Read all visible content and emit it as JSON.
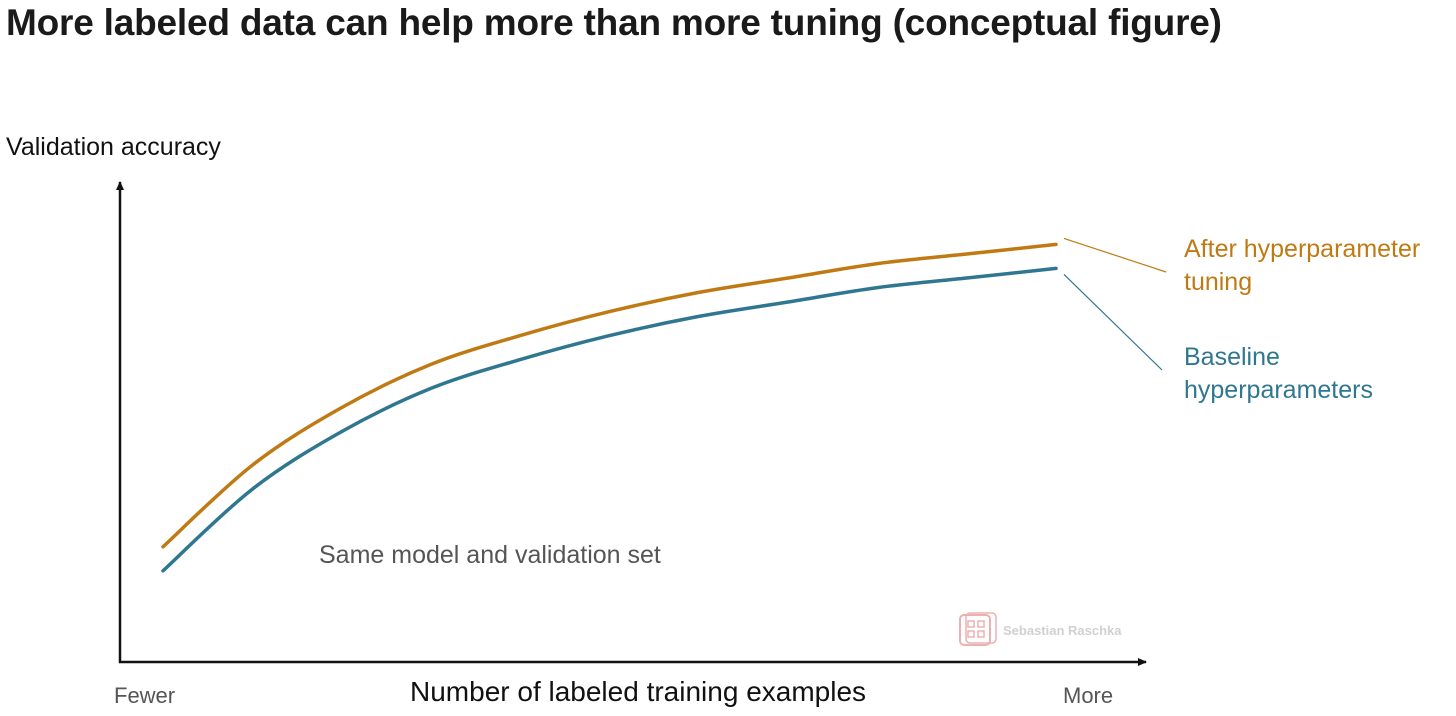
{
  "chart_data": {
    "type": "line",
    "title": "More labeled data can help more than more tuning (conceptual figure)",
    "xlabel": "Number of labeled training examples",
    "ylabel": "Validation accuracy",
    "xtick_labels": [
      "Fewer",
      "More"
    ],
    "annotation": "Same model and validation set",
    "xlim": [
      0,
      1
    ],
    "ylim": [
      0,
      1
    ],
    "grid": false,
    "legend": "direct labels at right end of lines",
    "series": [
      {
        "name": "After hyperparameter tuning",
        "label_lines": [
          "After hyperparameter",
          "tuning"
        ],
        "color": "#c07a14",
        "x": [
          0,
          0.1,
          0.2,
          0.3,
          0.4,
          0.5,
          0.6,
          0.7,
          0.8,
          0.9,
          1.0
        ],
        "y": [
          0.24,
          0.41,
          0.53,
          0.62,
          0.68,
          0.73,
          0.77,
          0.8,
          0.83,
          0.85,
          0.87
        ]
      },
      {
        "name": "Baseline hyperparameters",
        "label_lines": [
          "Baseline",
          "hyperparameters"
        ],
        "color": "#2f7791",
        "x": [
          0,
          0.1,
          0.2,
          0.3,
          0.4,
          0.5,
          0.6,
          0.7,
          0.8,
          0.9,
          1.0
        ],
        "y": [
          0.19,
          0.36,
          0.48,
          0.57,
          0.63,
          0.68,
          0.72,
          0.75,
          0.78,
          0.8,
          0.82
        ]
      }
    ]
  },
  "watermark": {
    "text": "Sebastian Raschka",
    "color": "#e07070"
  }
}
